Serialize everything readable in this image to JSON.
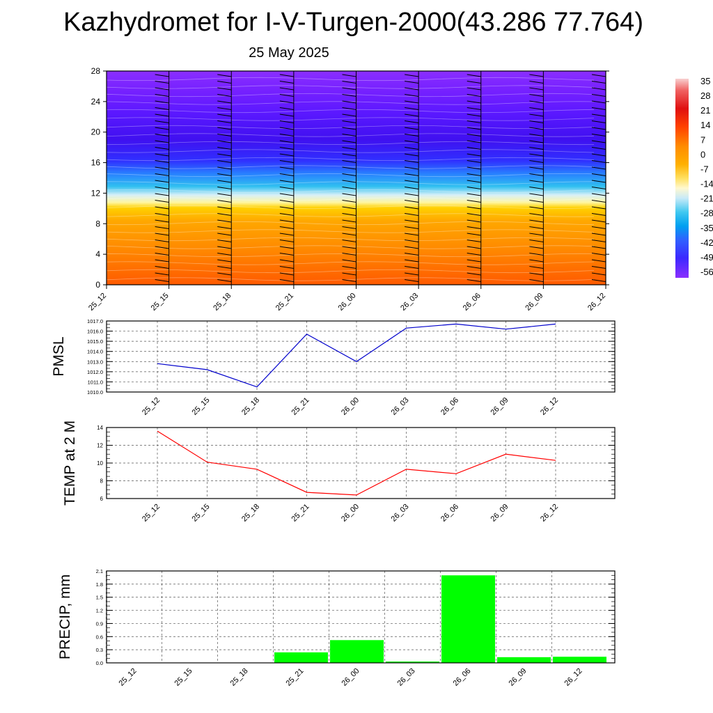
{
  "header": {
    "title": "Kazhydromet for I-V-Turgen-2000(43.286 77.764)",
    "subtitle": "25 May 2025"
  },
  "chart_data": [
    {
      "type": "heatmap",
      "title": "",
      "xlabel": "",
      "ylabel": "",
      "x_ticks": [
        "25_12",
        "25_15",
        "25_18",
        "25_21",
        "26_00",
        "26_03",
        "26_06",
        "26_09",
        "26_12"
      ],
      "y_ticks": [
        0,
        4,
        8,
        12,
        16,
        20,
        24,
        28
      ],
      "ylim": [
        0,
        28
      ],
      "variable": "temperature",
      "colorbar": {
        "labels": [
          "35",
          "28",
          "21",
          "14",
          "7",
          "0",
          "-7",
          "-14",
          "-21",
          "-28",
          "-35",
          "-42",
          "-49",
          "-56"
        ],
        "colors": [
          "#f4b8b8",
          "#e81a1a",
          "#ff5a00",
          "#ff9a00",
          "#ffd400",
          "#fff9c0",
          "#a8e0f0",
          "#00b4f0",
          "#3a6fff",
          "#5a20ff",
          "#7a28ff"
        ]
      },
      "overlay": "wind barbs",
      "barb_color": "#000000"
    },
    {
      "type": "line",
      "ylabel": "PMSL",
      "categories": [
        "25_12",
        "25_15",
        "25_18",
        "25_21",
        "26_00",
        "26_03",
        "26_06",
        "26_09",
        "26_12"
      ],
      "values": [
        1012.8,
        1012.2,
        1010.5,
        1015.7,
        1013.0,
        1016.3,
        1016.7,
        1016.2,
        1016.7
      ],
      "y_ticks": [
        "1010.0",
        "1011.0",
        "1012.0",
        "1013.0",
        "1014.0",
        "1015.0",
        "1016.0",
        "1017.0"
      ],
      "ylim": [
        1010,
        1017
      ],
      "color": "#0000cc",
      "grid": true
    },
    {
      "type": "line",
      "ylabel": "TEMP at 2 M",
      "categories": [
        "25_12",
        "25_15",
        "25_18",
        "25_21",
        "26_00",
        "26_03",
        "26_06",
        "26_09",
        "26_12"
      ],
      "values": [
        13.6,
        10.1,
        9.3,
        6.7,
        6.4,
        9.3,
        8.8,
        11.0,
        10.3
      ],
      "y_ticks": [
        "6",
        "8",
        "10",
        "12",
        "14"
      ],
      "ylim": [
        6,
        14
      ],
      "color": "#ff0000",
      "grid": true
    },
    {
      "type": "bar",
      "ylabel": "PRECIP, mm",
      "categories": [
        "25_12",
        "25_15",
        "25_18",
        "25_21",
        "26_00",
        "26_03",
        "26_06",
        "26_09",
        "26_12"
      ],
      "values": [
        0,
        0,
        0,
        0.24,
        0.52,
        0.03,
        2.0,
        0.13,
        0.14
      ],
      "y_ticks": [
        "0.0",
        "0.3",
        "0.6",
        "0.9",
        "1.2",
        "1.5",
        "1.8",
        "2.1"
      ],
      "ylim": [
        0,
        2.1
      ],
      "color": "#00ff00",
      "grid": true
    }
  ]
}
